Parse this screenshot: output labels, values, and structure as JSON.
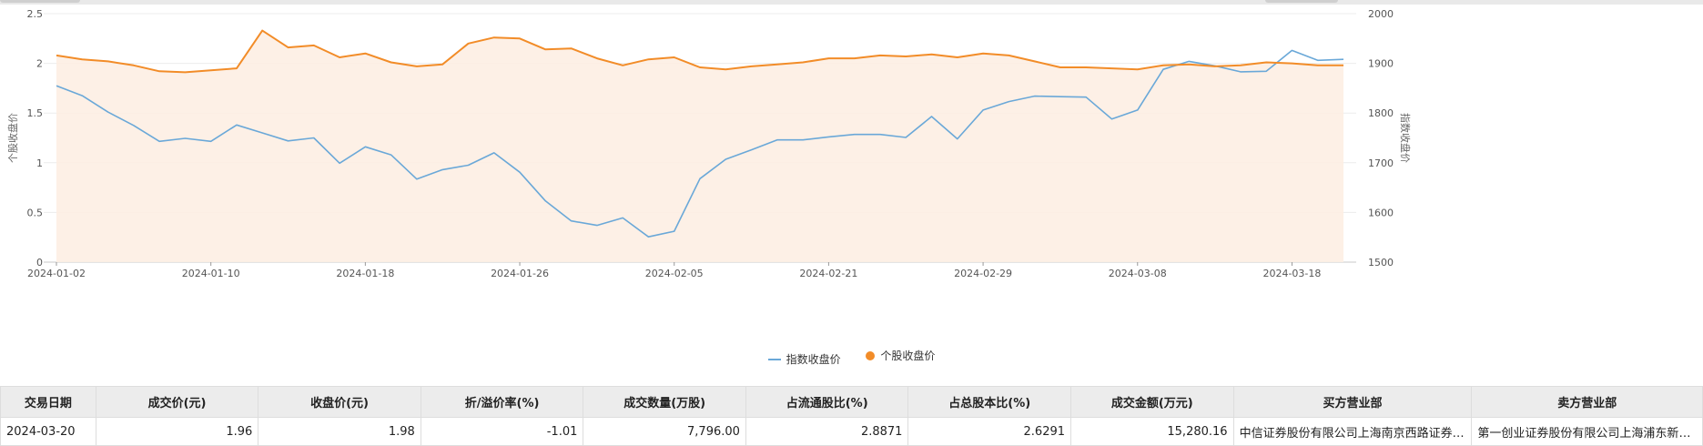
{
  "chart_data": {
    "type": "line",
    "x_tick_labels": [
      "2024-01-02",
      "2024-01-10",
      "2024-01-18",
      "2024-01-26",
      "2024-02-05",
      "2024-02-21",
      "2024-02-29",
      "2024-03-08",
      "2024-03-18"
    ],
    "left_axis": {
      "label": "个股收盘价",
      "ticks": [
        "0",
        "0.5",
        "1",
        "1.5",
        "2",
        "2.5"
      ],
      "ylim": [
        0,
        2.5
      ]
    },
    "right_axis": {
      "label": "指数收盘价",
      "ticks": [
        "1500",
        "1600",
        "1700",
        "1800",
        "1900",
        "2000"
      ],
      "ylim": [
        1500,
        2000
      ]
    },
    "grid": true,
    "legend_position": "bottom-center",
    "series": [
      {
        "name": "指数收盘价",
        "axis": "right",
        "color": "#6aa8d8",
        "values": [
          1855,
          1835,
          1802,
          1775,
          1743,
          1749,
          1743,
          1776,
          1760,
          1744,
          1750,
          1699,
          1732,
          1716,
          1667,
          1686,
          1695,
          1720,
          1681,
          1623,
          1583,
          1574,
          1589,
          1551,
          1562,
          1668,
          1707,
          1726,
          1746,
          1746,
          1752,
          1757,
          1757,
          1751,
          1793,
          1748,
          1806,
          1823,
          1834,
          1833,
          1832,
          1788,
          1806,
          1888,
          1904,
          1895,
          1883,
          1884,
          1926,
          1906,
          1908
        ]
      },
      {
        "name": "个股收盘价",
        "axis": "left",
        "color": "#f28c28",
        "values": [
          2.08,
          2.04,
          2.02,
          1.98,
          1.92,
          1.91,
          1.93,
          1.95,
          2.33,
          2.16,
          2.18,
          2.06,
          2.1,
          2.01,
          1.97,
          1.99,
          2.2,
          2.26,
          2.25,
          2.14,
          2.15,
          2.05,
          1.98,
          2.04,
          2.06,
          1.96,
          1.94,
          1.97,
          1.99,
          2.01,
          2.05,
          2.05,
          2.08,
          2.07,
          2.09,
          2.06,
          2.1,
          2.08,
          2.02,
          1.96,
          1.96,
          1.95,
          1.94,
          1.98,
          1.99,
          1.97,
          1.98,
          2.01,
          2.0,
          1.98,
          1.98
        ]
      }
    ]
  },
  "legend": {
    "index_label": "指数收盘价",
    "stock_label": "个股收盘价"
  },
  "table": {
    "headers": [
      "交易日期",
      "成交价(元)",
      "收盘价(元)",
      "折/溢价率(%)",
      "成交数量(万股)",
      "占流通股比(%)",
      "占总股本比(%)",
      "成交金额(万元)",
      "买方营业部",
      "卖方营业部"
    ],
    "rows": [
      [
        "2024-03-20",
        "1.96",
        "1.98",
        "-1.01",
        "7,796.00",
        "2.8871",
        "2.6291",
        "15,280.16",
        "中信证券股份有限公司上海南京西路证券营业部",
        "第一创业证券股份有限公司上海浦东新区证券营业部"
      ]
    ]
  }
}
